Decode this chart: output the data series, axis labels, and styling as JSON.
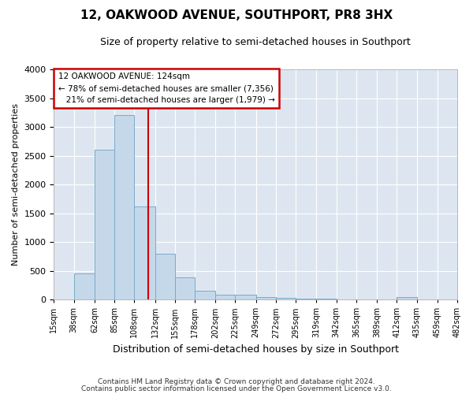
{
  "title_line1": "12, OAKWOOD AVENUE, SOUTHPORT, PR8 3HX",
  "title_line2": "Size of property relative to semi-detached houses in Southport",
  "xlabel": "Distribution of semi-detached houses by size in Southport",
  "ylabel": "Number of semi-detached properties",
  "footer_line1": "Contains HM Land Registry data © Crown copyright and database right 2024.",
  "footer_line2": "Contains public sector information licensed under the Open Government Licence v3.0.",
  "property_size": 124,
  "property_label": "12 OAKWOOD AVENUE: 124sqm",
  "pct_smaller": 78,
  "count_smaller": 7356,
  "pct_larger": 21,
  "count_larger": 1979,
  "bin_edges": [
    15,
    38,
    62,
    85,
    108,
    132,
    155,
    178,
    202,
    225,
    249,
    272,
    295,
    319,
    342,
    365,
    389,
    412,
    435,
    459,
    482
  ],
  "bar_values": [
    5,
    450,
    2600,
    3200,
    1620,
    800,
    390,
    150,
    90,
    80,
    40,
    30,
    20,
    10,
    5,
    0,
    0,
    40,
    0,
    0
  ],
  "bar_color": "#c5d8ea",
  "bar_edge_color": "#7aaac8",
  "vline_color": "#cc0000",
  "vline_x": 124,
  "ylim": [
    0,
    4000
  ],
  "yticks": [
    0,
    500,
    1000,
    1500,
    2000,
    2500,
    3000,
    3500,
    4000
  ],
  "annotation_box_color": "#cc0000",
  "bg_color": "#dde6f0",
  "grid_color": "#ffffff",
  "title_fontsize": 11,
  "subtitle_fontsize": 9,
  "ylabel_fontsize": 8,
  "xlabel_fontsize": 9
}
